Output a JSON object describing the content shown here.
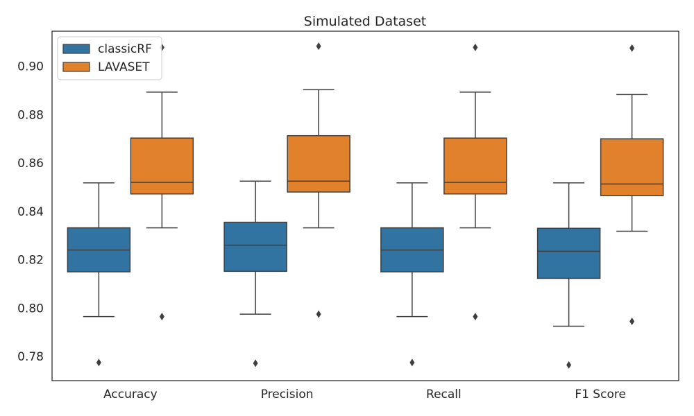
{
  "chart_data": {
    "type": "box",
    "title": "Simulated Dataset",
    "xlabel": "",
    "ylabel": "",
    "ylim": [
      0.77,
      0.9145
    ],
    "yticks": [
      0.78,
      0.8,
      0.82,
      0.84,
      0.86,
      0.88,
      0.9
    ],
    "ytick_labels": [
      "0.78",
      "0.80",
      "0.82",
      "0.84",
      "0.86",
      "0.88",
      "0.90"
    ],
    "categories": [
      "Accuracy",
      "Precision",
      "Recall",
      "F1 Score"
    ],
    "legend": {
      "position": "top-left"
    },
    "grid": false,
    "series": [
      {
        "name": "classicRF",
        "color": "#3274a1",
        "boxes": [
          {
            "whisker_low": 0.7965,
            "q1": 0.815,
            "median": 0.824,
            "q3": 0.8332,
            "whisker_high": 0.8518,
            "outliers": [
              0.7775
            ]
          },
          {
            "whisker_low": 0.7975,
            "q1": 0.8152,
            "median": 0.826,
            "q3": 0.8355,
            "whisker_high": 0.8525,
            "outliers": [
              0.7772
            ]
          },
          {
            "whisker_low": 0.7965,
            "q1": 0.815,
            "median": 0.824,
            "q3": 0.8332,
            "whisker_high": 0.8518,
            "outliers": [
              0.7775
            ]
          },
          {
            "whisker_low": 0.7925,
            "q1": 0.8123,
            "median": 0.8235,
            "q3": 0.833,
            "whisker_high": 0.8518,
            "outliers": [
              0.7765
            ]
          }
        ]
      },
      {
        "name": "LAVASET",
        "color": "#e1812c",
        "boxes": [
          {
            "whisker_low": 0.8332,
            "q1": 0.8472,
            "median": 0.852,
            "q3": 0.8703,
            "whisker_high": 0.8893,
            "outliers": [
              0.7965,
              0.9078
            ]
          },
          {
            "whisker_low": 0.8332,
            "q1": 0.848,
            "median": 0.8525,
            "q3": 0.8713,
            "whisker_high": 0.8903,
            "outliers": [
              0.7975,
              0.9083
            ]
          },
          {
            "whisker_low": 0.8332,
            "q1": 0.8472,
            "median": 0.852,
            "q3": 0.8703,
            "whisker_high": 0.8893,
            "outliers": [
              0.7965,
              0.9078
            ]
          },
          {
            "whisker_low": 0.8318,
            "q1": 0.8465,
            "median": 0.8513,
            "q3": 0.87,
            "whisker_high": 0.8883,
            "outliers": [
              0.7945,
              0.9075
            ]
          }
        ]
      }
    ]
  }
}
